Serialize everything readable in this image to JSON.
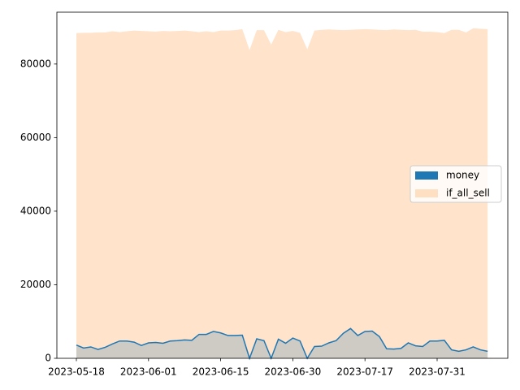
{
  "chart_data": {
    "type": "area",
    "categories": [
      "2023-05-18",
      null,
      null,
      null,
      null,
      null,
      null,
      null,
      null,
      null,
      "2023-06-01",
      null,
      null,
      null,
      null,
      null,
      null,
      null,
      null,
      null,
      "2023-06-15",
      null,
      null,
      null,
      null,
      null,
      null,
      null,
      null,
      null,
      "2023-06-30",
      null,
      null,
      null,
      null,
      null,
      null,
      null,
      null,
      null,
      "2023-07-17",
      null,
      null,
      null,
      null,
      null,
      null,
      null,
      null,
      null,
      "2023-07-31",
      null,
      null,
      null,
      null,
      null,
      null,
      null
    ],
    "series": [
      {
        "name": "money",
        "color": "#1f77b4",
        "values": [
          3600,
          2800,
          3100,
          2400,
          3000,
          3900,
          4700,
          4700,
          4400,
          3500,
          4200,
          4300,
          4100,
          4700,
          4800,
          5000,
          4900,
          6500,
          6500,
          7300,
          6900,
          6200,
          6200,
          6300,
          0,
          5300,
          4800,
          0,
          5200,
          4100,
          5500,
          4700,
          0,
          3200,
          3300,
          4200,
          4800,
          6800,
          8100,
          6200,
          7300,
          7400,
          5900,
          2600,
          2500,
          2700,
          4200,
          3400,
          3200,
          4700,
          4700,
          4900,
          2300,
          1900,
          2300,
          3100,
          2300,
          1900
        ]
      },
      {
        "name": "if_all_sell",
        "color": "#ff7f0e",
        "values": [
          88400,
          88500,
          88500,
          88600,
          88600,
          88900,
          88700,
          88900,
          89100,
          89000,
          88900,
          88800,
          89000,
          88900,
          89000,
          89100,
          88900,
          88700,
          88900,
          88700,
          89100,
          89100,
          89200,
          89500,
          83800,
          89200,
          89200,
          85300,
          89300,
          88700,
          89000,
          88500,
          84000,
          89100,
          89300,
          89400,
          89300,
          89200,
          89300,
          89400,
          89500,
          89400,
          89300,
          89200,
          89400,
          89300,
          89200,
          89300,
          88800,
          88800,
          88700,
          88400,
          89300,
          89300,
          88600,
          89700,
          89600,
          89500
        ]
      }
    ],
    "ylim": [
      0,
      94100
    ],
    "yticks": [
      0,
      20000,
      40000,
      60000,
      80000
    ],
    "legend": "center right"
  }
}
